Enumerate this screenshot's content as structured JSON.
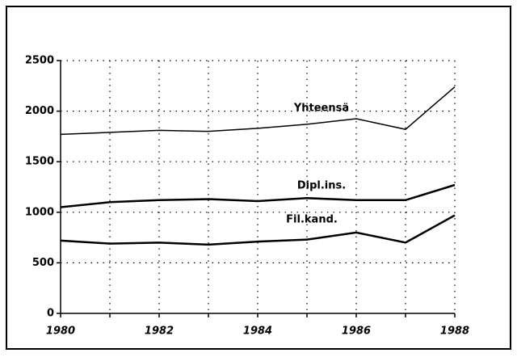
{
  "chart_data": {
    "type": "line",
    "x": [
      1980,
      1981,
      1982,
      1983,
      1984,
      1985,
      1986,
      1987,
      1988
    ],
    "series": [
      {
        "name": "Yhteensä",
        "color": "#000000",
        "values": [
          1770,
          1790,
          1810,
          1800,
          1830,
          1870,
          1925,
          1820,
          2240
        ]
      },
      {
        "name": "Dipl.ins.",
        "color": "#000000",
        "values": [
          1050,
          1100,
          1120,
          1130,
          1110,
          1140,
          1120,
          1120,
          1270
        ]
      },
      {
        "name": "Fil.kand.",
        "color": "#000000",
        "values": [
          720,
          690,
          700,
          680,
          710,
          730,
          800,
          700,
          970
        ]
      }
    ],
    "xlim": [
      1980,
      1988
    ],
    "xticks": [
      1980,
      1982,
      1984,
      1986,
      1988
    ],
    "xminorticks": [
      1981,
      1983,
      1985,
      1987
    ],
    "ylim": [
      0,
      2500
    ],
    "yticks": [
      0,
      500,
      1000,
      1500,
      2000,
      2500
    ],
    "grid": true
  }
}
